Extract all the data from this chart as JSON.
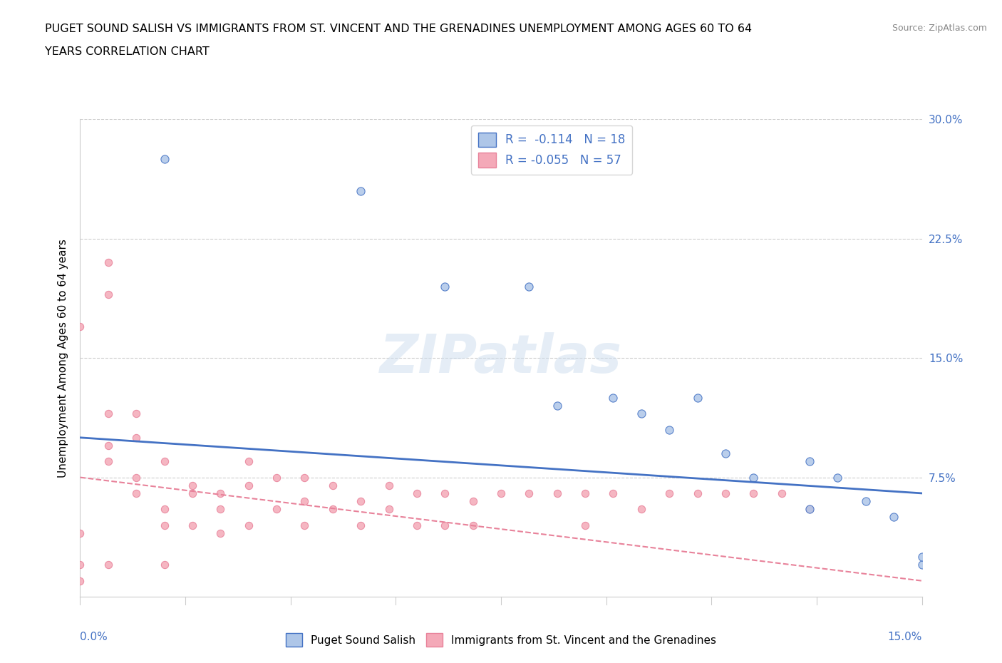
{
  "title_line1": "PUGET SOUND SALISH VS IMMIGRANTS FROM ST. VINCENT AND THE GRENADINES UNEMPLOYMENT AMONG AGES 60 TO 64",
  "title_line2": "YEARS CORRELATION CHART",
  "source": "Source: ZipAtlas.com",
  "xlabel_start": "0.0%",
  "xlabel_end": "15.0%",
  "ylabel": "Unemployment Among Ages 60 to 64 years",
  "xmin": 0.0,
  "xmax": 0.15,
  "ymin": 0.0,
  "ymax": 0.3,
  "yticks": [
    0.0,
    0.075,
    0.15,
    0.225,
    0.3
  ],
  "ytick_labels": [
    "",
    "7.5%",
    "15.0%",
    "22.5%",
    "30.0%"
  ],
  "blue_R": -0.114,
  "blue_N": 18,
  "pink_R": -0.055,
  "pink_N": 57,
  "legend_label_blue": "Puget Sound Salish",
  "legend_label_pink": "Immigrants from St. Vincent and the Grenadines",
  "blue_color": "#aec6e8",
  "pink_color": "#f4a9b8",
  "blue_line_color": "#4472c4",
  "pink_line_color": "#e8829a",
  "watermark": "ZIPatlas",
  "blue_line_y0": 0.1,
  "blue_line_y1": 0.065,
  "pink_line_y0": 0.075,
  "pink_line_y1": 0.01,
  "blue_scatter_x": [
    0.015,
    0.05,
    0.065,
    0.08,
    0.095,
    0.1,
    0.105,
    0.11,
    0.115,
    0.12,
    0.13,
    0.135,
    0.14,
    0.145,
    0.15,
    0.15,
    0.085,
    0.13
  ],
  "blue_scatter_y": [
    0.275,
    0.255,
    0.195,
    0.195,
    0.125,
    0.115,
    0.105,
    0.125,
    0.09,
    0.075,
    0.085,
    0.075,
    0.06,
    0.05,
    0.02,
    0.025,
    0.12,
    0.055
  ],
  "pink_scatter_x": [
    0.0,
    0.0,
    0.0,
    0.0,
    0.005,
    0.005,
    0.005,
    0.005,
    0.005,
    0.005,
    0.01,
    0.01,
    0.01,
    0.01,
    0.015,
    0.015,
    0.015,
    0.015,
    0.02,
    0.02,
    0.02,
    0.025,
    0.025,
    0.025,
    0.03,
    0.03,
    0.03,
    0.035,
    0.035,
    0.04,
    0.04,
    0.04,
    0.045,
    0.045,
    0.05,
    0.05,
    0.055,
    0.055,
    0.06,
    0.06,
    0.065,
    0.065,
    0.07,
    0.07,
    0.075,
    0.08,
    0.085,
    0.09,
    0.09,
    0.095,
    0.1,
    0.105,
    0.11,
    0.115,
    0.12,
    0.125,
    0.13
  ],
  "pink_scatter_y": [
    0.17,
    0.04,
    0.02,
    0.01,
    0.21,
    0.19,
    0.115,
    0.095,
    0.085,
    0.02,
    0.115,
    0.1,
    0.075,
    0.065,
    0.085,
    0.055,
    0.045,
    0.02,
    0.07,
    0.065,
    0.045,
    0.065,
    0.055,
    0.04,
    0.085,
    0.07,
    0.045,
    0.075,
    0.055,
    0.075,
    0.06,
    0.045,
    0.07,
    0.055,
    0.06,
    0.045,
    0.07,
    0.055,
    0.065,
    0.045,
    0.065,
    0.045,
    0.06,
    0.045,
    0.065,
    0.065,
    0.065,
    0.065,
    0.045,
    0.065,
    0.055,
    0.065,
    0.065,
    0.065,
    0.065,
    0.065,
    0.055
  ]
}
